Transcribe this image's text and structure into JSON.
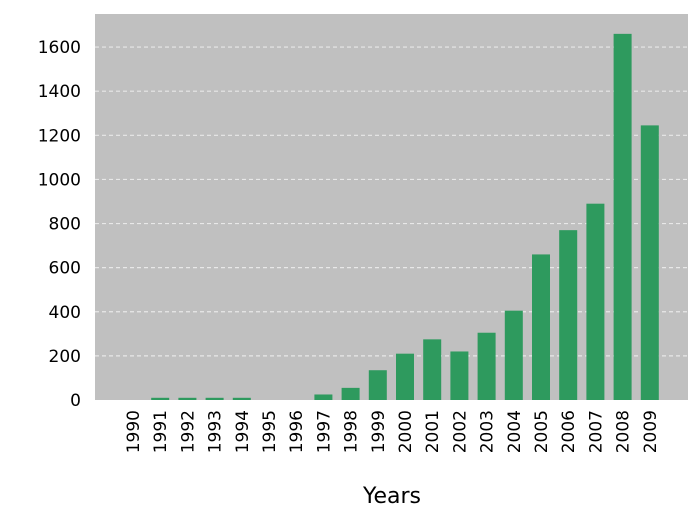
{
  "chart_data": {
    "type": "bar",
    "categories": [
      "1990",
      "1991",
      "1992",
      "1993",
      "1994",
      "1995",
      "1996",
      "1997",
      "1998",
      "1999",
      "2000",
      "2001",
      "2002",
      "2003",
      "2004",
      "2005",
      "2006",
      "2007",
      "2008",
      "2009"
    ],
    "values": [
      0,
      10,
      10,
      10,
      10,
      0,
      0,
      25,
      55,
      135,
      210,
      275,
      220,
      305,
      405,
      660,
      770,
      890,
      1660,
      1245
    ],
    "title": "",
    "xlabel": "Years",
    "ylabel": "",
    "ylim": [
      0,
      1750
    ],
    "yticks": [
      0,
      200,
      400,
      600,
      800,
      1000,
      1200,
      1400,
      1600
    ],
    "grid": true,
    "colors": {
      "bar": "#2e9a5e",
      "plot_background": "#c0c0c0",
      "gridline": "#e8e8e8"
    }
  }
}
